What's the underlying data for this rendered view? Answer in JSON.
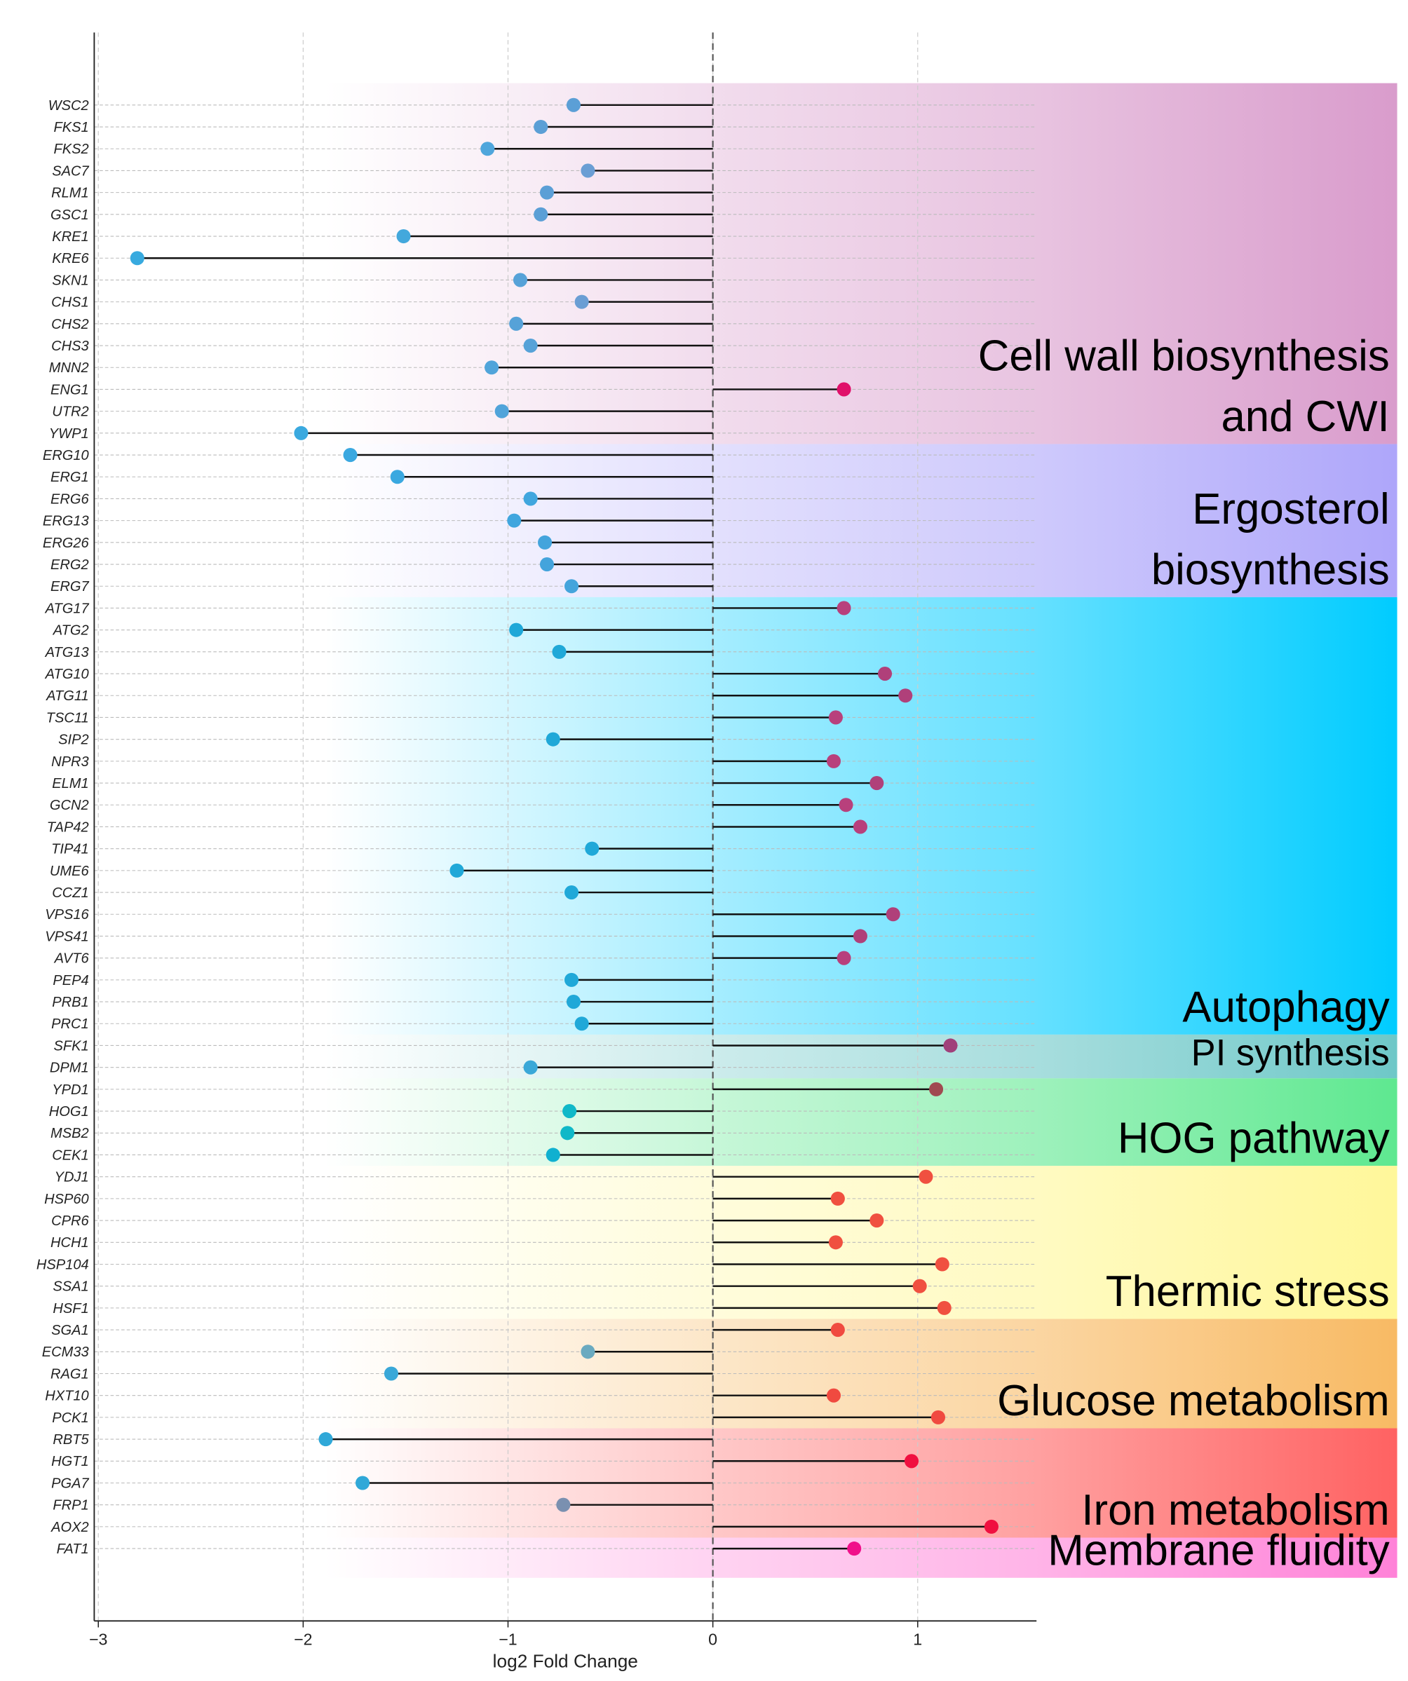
{
  "chart_data": {
    "type": "lollipop",
    "xlabel": "log2 Fold Change",
    "xlim": [
      -3.02,
      1.58
    ],
    "xticks": [
      {
        "value": -3,
        "label": "−3"
      },
      {
        "value": -2,
        "label": "−2"
      },
      {
        "value": -1,
        "label": "−1"
      },
      0,
      1
    ],
    "grid": true,
    "groups": [
      {
        "label": [
          "Cell wall biosynthesis",
          "and CWI"
        ],
        "color": "#d99ccc",
        "categories": [
          "WSC2",
          "FKS1",
          "FKS2",
          "SAC7",
          "RLM1",
          "GSC1",
          "KRE1",
          "KRE6",
          "SKN1",
          "CHS1",
          "CHS2",
          "CHS3",
          "MNN2",
          "ENG1",
          "UTR2",
          "YWP1"
        ],
        "values": [
          -0.68,
          -0.84,
          -1.1,
          -0.61,
          -0.81,
          -0.84,
          -1.51,
          -2.81,
          -0.94,
          -0.64,
          -0.96,
          -0.89,
          -1.08,
          0.64,
          -1.03,
          -2.01
        ],
        "colors": [
          "#5b9fd6",
          "#5b9fd6",
          "#4fa6dc",
          "#6a9ed4",
          "#5b9fd6",
          "#5b9fd6",
          "#43a8dc",
          "#38aadf",
          "#56a2d8",
          "#6a9ed4",
          "#56a2d8",
          "#56a2d8",
          "#50a4da",
          "#e0106a",
          "#50a4da",
          "#3aa9df"
        ]
      },
      {
        "label": [
          "Ergosterol",
          "biosynthesis"
        ],
        "color": "#aea6fa",
        "categories": [
          "ERG10",
          "ERG1",
          "ERG6",
          "ERG13",
          "ERG26",
          "ERG2",
          "ERG7"
        ],
        "values": [
          -1.77,
          -1.54,
          -0.89,
          -0.97,
          -0.82,
          -0.81,
          -0.69
        ],
        "colors": [
          "#3aa8e0",
          "#3aa8e0",
          "#40a6de",
          "#40a6de",
          "#44a4dc",
          "#44a4dc",
          "#44a4dc"
        ]
      },
      {
        "label": [
          "Autophagy"
        ],
        "color": "#00ccff",
        "categories": [
          "ATG17",
          "ATG2",
          "ATG13",
          "ATG10",
          "ATG11",
          "TSC11",
          "SIP2",
          "NPR3",
          "ELM1",
          "GCN2",
          "TAP42",
          "TIP41",
          "UME6",
          "CCZ1",
          "VPS16",
          "VPS41",
          "AVT6",
          "PEP4",
          "PRB1",
          "PRC1"
        ],
        "values": [
          0.64,
          -0.96,
          -0.75,
          0.84,
          0.94,
          0.6,
          -0.78,
          0.59,
          0.8,
          0.65,
          0.72,
          -0.59,
          -1.25,
          -0.69,
          0.88,
          0.72,
          0.64,
          -0.69,
          -0.68,
          -0.64
        ],
        "colors": [
          "#b8407c",
          "#20a8d8",
          "#20a8d8",
          "#b0407a",
          "#b0407a",
          "#b8407c",
          "#20a8d8",
          "#b8407c",
          "#b0407a",
          "#b8407c",
          "#b8407c",
          "#20a8d8",
          "#20a8d8",
          "#20a8d8",
          "#b0407a",
          "#b0407a",
          "#b8407c",
          "#20a8d8",
          "#20a8d8",
          "#20a8d8"
        ]
      },
      {
        "label": [
          "PI synthesis"
        ],
        "color": "#6ec8c8",
        "categories": [
          "SFK1",
          "DPM1"
        ],
        "values": [
          1.16,
          -0.89
        ],
        "colors": [
          "#a0407a",
          "#3aa8d8"
        ]
      },
      {
        "label": [
          "HOG pathway"
        ],
        "color": "#5ee890",
        "categories": [
          "YPD1",
          "HOG1",
          "MSB2",
          "CEK1"
        ],
        "values": [
          1.09,
          -0.7,
          -0.71,
          -0.78
        ],
        "colors": [
          "#a04a50",
          "#10b8c8",
          "#10b8c8",
          "#10b0d0"
        ]
      },
      {
        "label": [
          "Thermic stress"
        ],
        "color": "#fff79a",
        "categories": [
          "YDJ1",
          "HSP60",
          "CPR6",
          "HCH1",
          "HSP104",
          "SSA1",
          "HSF1"
        ],
        "values": [
          1.04,
          0.61,
          0.8,
          0.6,
          1.12,
          1.01,
          1.13
        ],
        "colors": [
          "#f05040",
          "#f05040",
          "#f05040",
          "#f05040",
          "#f05040",
          "#f05040",
          "#f05040"
        ]
      },
      {
        "label": [
          "Glucose metabolism"
        ],
        "color": "#f8ba64",
        "categories": [
          "SGA1",
          "ECM33",
          "RAG1",
          "HXT10",
          "PCK1"
        ],
        "values": [
          0.61,
          -0.61,
          -1.57,
          0.59,
          1.1
        ],
        "colors": [
          "#f04a40",
          "#6aaac0",
          "#3aa8d8",
          "#f04a40",
          "#f04a40"
        ]
      },
      {
        "label": [
          "Iron metabolism"
        ],
        "color": "#ff6262",
        "categories": [
          "RBT5",
          "HGT1",
          "PGA7",
          "FRP1",
          "AOX2"
        ],
        "values": [
          -1.89,
          0.97,
          -1.71,
          -0.73,
          1.36
        ],
        "colors": [
          "#30a8d8",
          "#f01040",
          "#30a8d8",
          "#7a90b0",
          "#f01040"
        ]
      },
      {
        "label": [
          "Membrane fluidity"
        ],
        "color": "#ff82d8",
        "categories": [
          "FAT1"
        ],
        "values": [
          0.69
        ],
        "colors": [
          "#f0108a"
        ]
      }
    ]
  }
}
